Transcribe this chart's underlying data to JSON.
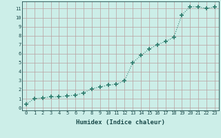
{
  "x": [
    0,
    1,
    2,
    3,
    4,
    5,
    6,
    7,
    8,
    9,
    10,
    11,
    12,
    13,
    14,
    15,
    16,
    17,
    18,
    19,
    20,
    21,
    22,
    23
  ],
  "y": [
    0.4,
    1.0,
    1.1,
    1.2,
    1.2,
    1.3,
    1.4,
    1.65,
    2.1,
    2.3,
    2.5,
    2.6,
    3.0,
    5.0,
    5.8,
    6.5,
    7.0,
    7.35,
    7.8,
    10.3,
    11.2,
    11.2,
    11.0,
    11.2
  ],
  "xlabel": "Humidex (Indice chaleur)",
  "line_color": "#2e7d6e",
  "marker": "+",
  "marker_size": 4.0,
  "bg_color": "#cceee8",
  "grid_color": "#b8a0a0",
  "xlim": [
    -0.5,
    23.5
  ],
  "ylim": [
    -0.3,
    11.8
  ],
  "xticks": [
    0,
    1,
    2,
    3,
    4,
    5,
    6,
    7,
    8,
    9,
    10,
    11,
    12,
    13,
    14,
    15,
    16,
    17,
    18,
    19,
    20,
    21,
    22,
    23
  ],
  "yticks": [
    0,
    1,
    2,
    3,
    4,
    5,
    6,
    7,
    8,
    9,
    10,
    11
  ],
  "tick_fontsize": 5.0,
  "xlabel_fontsize": 6.5,
  "tick_color": "#1a4a4a",
  "axis_color": "#1a4a4a"
}
